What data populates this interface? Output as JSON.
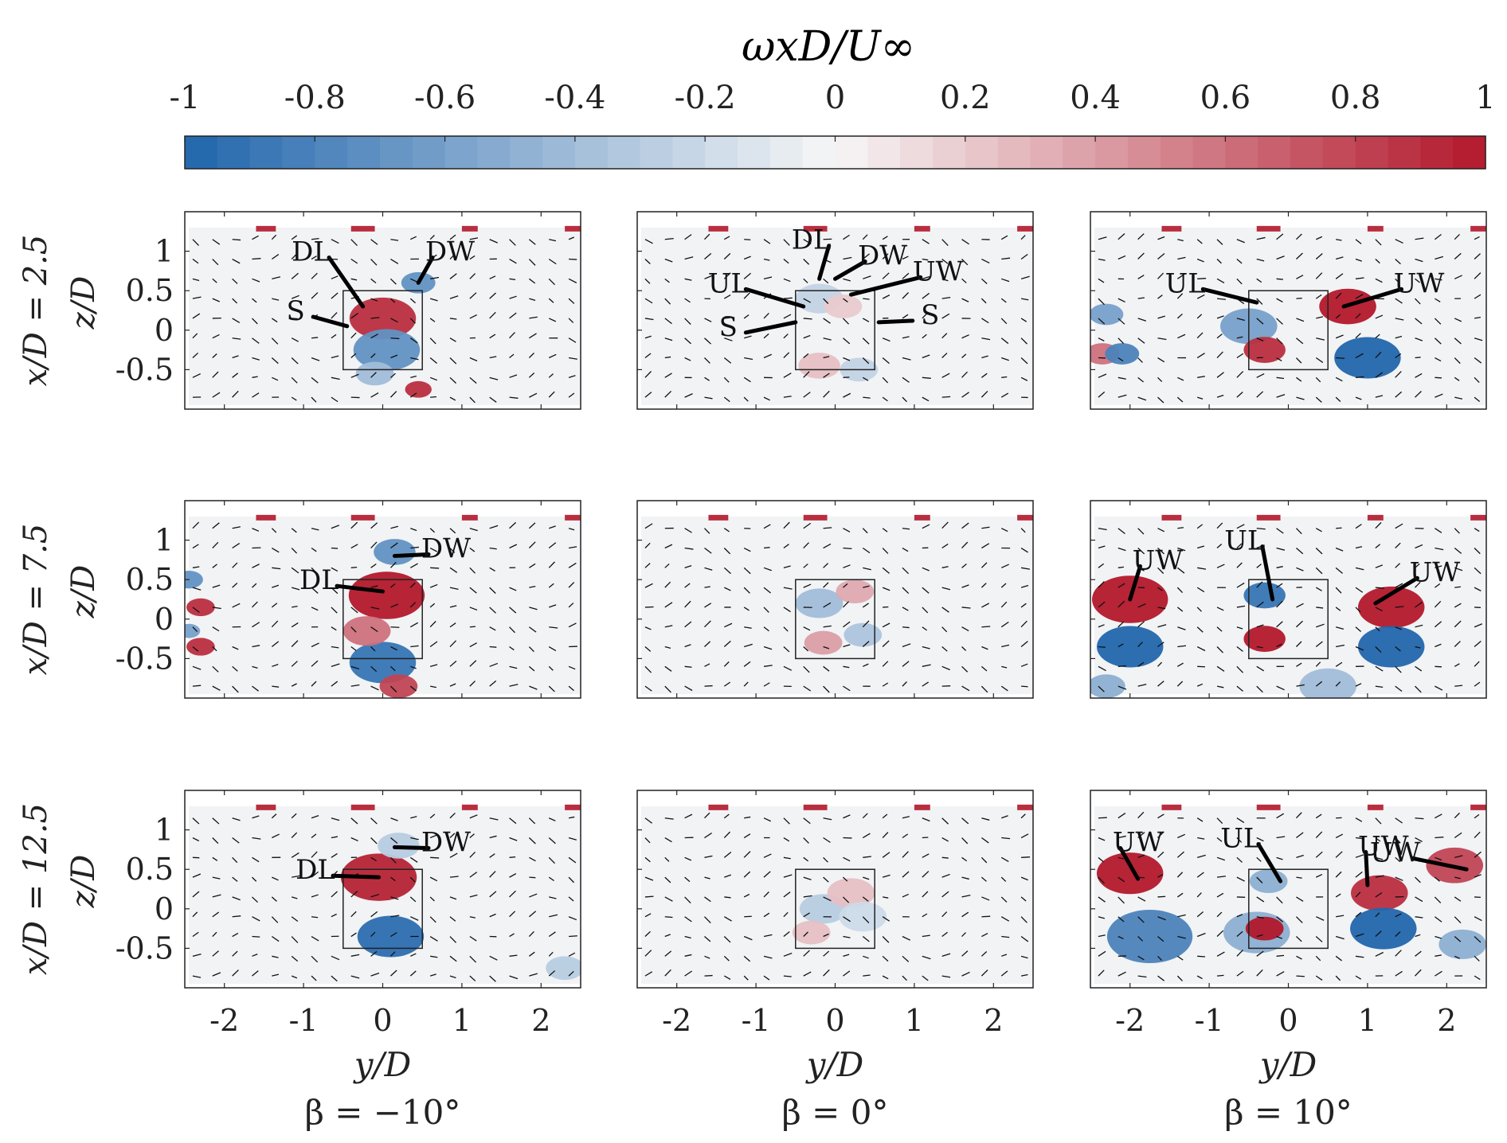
{
  "chart_data": {
    "type": "heatmap",
    "title": "ωxD/U∞",
    "colorbar": {
      "range": [
        -1,
        1
      ],
      "ticks": [
        "-1",
        "-0.8",
        "-0.6",
        "-0.4",
        "-0.2",
        "0",
        "0.2",
        "0.4",
        "0.6",
        "0.8",
        "1"
      ],
      "colormap": "blue-white-red (diverging)",
      "low_color": "#2166ac",
      "mid_color": "#f7f7f7",
      "high_color": "#b2182b"
    },
    "x_axis": {
      "label": "y/D",
      "range": [
        -2.5,
        2.5
      ],
      "ticks": [
        "-2",
        "-1",
        "0",
        "1",
        "2"
      ]
    },
    "y_axis": {
      "label": "z/D",
      "range": [
        -1,
        1.5
      ],
      "ticks": [
        "1",
        "0.5",
        "0",
        "-0.5"
      ]
    },
    "rows": [
      {
        "label": "x/D = 2.5",
        "x_over_D": 2.5
      },
      {
        "label": "x/D = 7.5",
        "x_over_D": 7.5
      },
      {
        "label": "x/D = 12.5",
        "x_over_D": 12.5
      }
    ],
    "columns": [
      {
        "label": "β = −10°",
        "beta_deg": -10
      },
      {
        "label": "β = 0°",
        "beta_deg": 0
      },
      {
        "label": "β = 10°",
        "beta_deg": 10
      }
    ],
    "body_outline": {
      "y": [
        -0.5,
        0.5
      ],
      "z": [
        -0.5,
        0.5
      ]
    },
    "panels": [
      {
        "row": 0,
        "col": 0,
        "annotations": [
          {
            "text": "DL",
            "y": -0.9,
            "z": 1.0,
            "ty": -0.25,
            "tz": 0.3
          },
          {
            "text": "DW",
            "y": 0.85,
            "z": 1.0,
            "ty": 0.45,
            "tz": 0.6
          },
          {
            "text": "S",
            "y": -1.1,
            "z": 0.25,
            "ty": -0.45,
            "tz": 0.05
          }
        ],
        "vortices": [
          {
            "y": 0.0,
            "z": 0.15,
            "s": 0.35,
            "v": 0.9
          },
          {
            "y": 0.45,
            "z": 0.6,
            "s": 0.18,
            "v": -0.7
          },
          {
            "y": 0.05,
            "z": -0.25,
            "s": 0.35,
            "v": -0.7
          },
          {
            "y": 0.45,
            "z": -0.75,
            "s": 0.14,
            "v": 0.9
          },
          {
            "y": -0.1,
            "z": -0.55,
            "s": 0.2,
            "v": -0.4
          }
        ]
      },
      {
        "row": 0,
        "col": 1,
        "annotations": [
          {
            "text": "DL",
            "y": -0.3,
            "z": 1.15,
            "ty": -0.2,
            "tz": 0.65
          },
          {
            "text": "DW",
            "y": 0.6,
            "z": 0.95,
            "ty": 0.0,
            "tz": 0.65
          },
          {
            "text": "UW",
            "y": 1.3,
            "z": 0.75,
            "ty": 0.2,
            "tz": 0.45
          },
          {
            "text": "UL",
            "y": -1.35,
            "z": 0.6,
            "ty": -0.4,
            "tz": 0.3
          },
          {
            "text": "S",
            "y": -1.35,
            "z": 0.05,
            "ty": -0.5,
            "tz": 0.1
          },
          {
            "text": "S",
            "y": 1.2,
            "z": 0.2,
            "ty": 0.55,
            "tz": 0.1
          }
        ],
        "vortices": [
          {
            "y": -0.2,
            "z": 0.4,
            "s": 0.25,
            "v": -0.25
          },
          {
            "y": 0.1,
            "z": 0.3,
            "s": 0.2,
            "v": 0.2
          },
          {
            "y": -0.2,
            "z": -0.45,
            "s": 0.22,
            "v": 0.25
          },
          {
            "y": 0.3,
            "z": -0.5,
            "s": 0.2,
            "v": -0.25
          }
        ]
      },
      {
        "row": 0,
        "col": 2,
        "annotations": [
          {
            "text": "UL",
            "y": -1.3,
            "z": 0.6,
            "ty": -0.4,
            "tz": 0.35
          },
          {
            "text": "UW",
            "y": 1.65,
            "z": 0.6,
            "ty": 0.7,
            "tz": 0.3
          }
        ],
        "vortices": [
          {
            "y": 0.75,
            "z": 0.3,
            "s": 0.3,
            "v": 1.0
          },
          {
            "y": 1.0,
            "z": -0.35,
            "s": 0.35,
            "v": -1.0
          },
          {
            "y": -0.5,
            "z": 0.05,
            "s": 0.3,
            "v": -0.6
          },
          {
            "y": -0.3,
            "z": -0.25,
            "s": 0.22,
            "v": 0.9
          },
          {
            "y": -2.3,
            "z": 0.2,
            "s": 0.18,
            "v": -0.6
          },
          {
            "y": -2.35,
            "z": -0.3,
            "s": 0.18,
            "v": 0.6
          },
          {
            "y": -2.1,
            "z": -0.3,
            "s": 0.18,
            "v": -0.8
          }
        ]
      },
      {
        "row": 1,
        "col": 0,
        "annotations": [
          {
            "text": "DW",
            "y": 0.8,
            "z": 0.9,
            "ty": 0.15,
            "tz": 0.8
          },
          {
            "text": "DL",
            "y": -0.8,
            "z": 0.5,
            "ty": 0.0,
            "tz": 0.35
          }
        ],
        "vortices": [
          {
            "y": 0.05,
            "z": 0.3,
            "s": 0.4,
            "v": 1.0
          },
          {
            "y": 0.15,
            "z": 0.85,
            "s": 0.22,
            "v": -0.7
          },
          {
            "y": 0.0,
            "z": -0.55,
            "s": 0.35,
            "v": -0.9
          },
          {
            "y": -0.2,
            "z": -0.15,
            "s": 0.25,
            "v": 0.6
          },
          {
            "y": 0.2,
            "z": -0.85,
            "s": 0.2,
            "v": 0.8
          },
          {
            "y": -2.45,
            "z": 0.5,
            "s": 0.15,
            "v": -0.7
          },
          {
            "y": -2.3,
            "z": 0.15,
            "s": 0.15,
            "v": 0.9
          },
          {
            "y": -2.3,
            "z": -0.35,
            "s": 0.15,
            "v": 0.9
          },
          {
            "y": -2.45,
            "z": -0.15,
            "s": 0.12,
            "v": -0.6
          }
        ]
      },
      {
        "row": 1,
        "col": 1,
        "annotations": [],
        "vortices": [
          {
            "y": -0.2,
            "z": 0.2,
            "s": 0.25,
            "v": -0.4
          },
          {
            "y": 0.25,
            "z": 0.35,
            "s": 0.2,
            "v": 0.35
          },
          {
            "y": -0.15,
            "z": -0.3,
            "s": 0.2,
            "v": 0.4
          },
          {
            "y": 0.35,
            "z": -0.2,
            "s": 0.2,
            "v": -0.35
          }
        ]
      },
      {
        "row": 1,
        "col": 2,
        "annotations": [
          {
            "text": "UW",
            "y": -1.65,
            "z": 0.75,
            "ty": -2.0,
            "tz": 0.25
          },
          {
            "text": "UL",
            "y": -0.55,
            "z": 1.0,
            "ty": -0.2,
            "tz": 0.25
          },
          {
            "text": "UW",
            "y": 1.85,
            "z": 0.6,
            "ty": 1.1,
            "tz": 0.2
          }
        ],
        "vortices": [
          {
            "y": -2.0,
            "z": 0.25,
            "s": 0.4,
            "v": 1.0
          },
          {
            "y": -2.0,
            "z": -0.35,
            "s": 0.35,
            "v": -1.0
          },
          {
            "y": 1.3,
            "z": 0.15,
            "s": 0.35,
            "v": 1.0
          },
          {
            "y": 1.3,
            "z": -0.35,
            "s": 0.35,
            "v": -1.0
          },
          {
            "y": -0.3,
            "z": 0.3,
            "s": 0.22,
            "v": -0.9
          },
          {
            "y": -0.3,
            "z": -0.25,
            "s": 0.22,
            "v": 1.0
          },
          {
            "y": -2.3,
            "z": -0.85,
            "s": 0.2,
            "v": -0.5
          },
          {
            "y": 0.5,
            "z": -0.85,
            "s": 0.3,
            "v": -0.4
          }
        ]
      },
      {
        "row": 2,
        "col": 0,
        "annotations": [
          {
            "text": "DW",
            "y": 0.8,
            "z": 0.85,
            "ty": 0.15,
            "tz": 0.78
          },
          {
            "text": "DL",
            "y": -0.85,
            "z": 0.5,
            "ty": -0.05,
            "tz": 0.4
          }
        ],
        "vortices": [
          {
            "y": -0.05,
            "z": 0.4,
            "s": 0.4,
            "v": 0.95
          },
          {
            "y": 0.1,
            "z": -0.35,
            "s": 0.35,
            "v": -0.95
          },
          {
            "y": 0.2,
            "z": 0.8,
            "s": 0.22,
            "v": -0.3
          },
          {
            "y": 2.3,
            "z": -0.75,
            "s": 0.2,
            "v": -0.3
          }
        ]
      },
      {
        "row": 2,
        "col": 1,
        "annotations": [],
        "vortices": [
          {
            "y": -0.15,
            "z": 0.0,
            "s": 0.25,
            "v": -0.3
          },
          {
            "y": 0.2,
            "z": 0.2,
            "s": 0.25,
            "v": 0.25
          },
          {
            "y": -0.3,
            "z": -0.3,
            "s": 0.2,
            "v": 0.25
          },
          {
            "y": 0.35,
            "z": -0.1,
            "s": 0.25,
            "v": -0.2
          }
        ]
      },
      {
        "row": 2,
        "col": 2,
        "annotations": [
          {
            "text": "UW",
            "y": -1.9,
            "z": 0.85,
            "ty": -1.9,
            "tz": 0.38
          },
          {
            "text": "UL",
            "y": -0.6,
            "z": 0.9,
            "ty": -0.1,
            "tz": 0.35
          },
          {
            "text": "UW",
            "y": 1.2,
            "z": 0.8,
            "ty": 1.0,
            "tz": 0.3
          },
          {
            "text": "UW",
            "y": 1.35,
            "z": 0.72,
            "ty": 2.25,
            "tz": 0.5
          }
        ],
        "vortices": [
          {
            "y": -2.0,
            "z": 0.45,
            "s": 0.35,
            "v": 1.0
          },
          {
            "y": -1.75,
            "z": -0.35,
            "s": 0.45,
            "v": -0.8
          },
          {
            "y": -0.4,
            "z": -0.3,
            "s": 0.35,
            "v": -0.5
          },
          {
            "y": 1.15,
            "z": 0.2,
            "s": 0.3,
            "v": 0.9
          },
          {
            "y": 2.1,
            "z": 0.55,
            "s": 0.3,
            "v": 0.8
          },
          {
            "y": 1.2,
            "z": -0.25,
            "s": 0.35,
            "v": -1.0
          },
          {
            "y": -0.3,
            "z": -0.25,
            "s": 0.2,
            "v": 1.0
          },
          {
            "y": -0.25,
            "z": 0.35,
            "s": 0.2,
            "v": -0.5
          },
          {
            "y": 2.2,
            "z": -0.45,
            "s": 0.25,
            "v": -0.5
          }
        ]
      }
    ]
  }
}
